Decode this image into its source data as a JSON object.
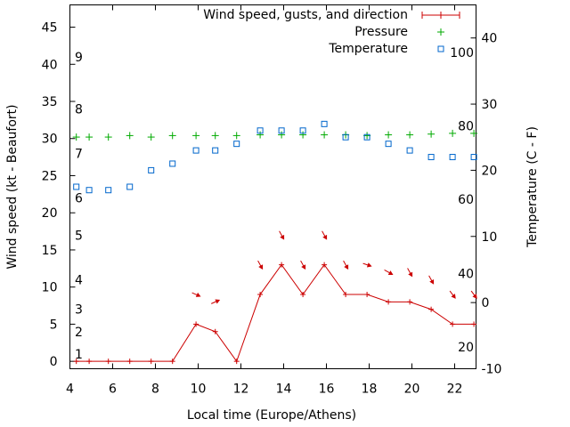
{
  "chart_data": {
    "type": "line",
    "xlabel": "Local time (Europe/Athens)",
    "ylabel_left": "Wind speed (kt - Beaufort)",
    "ylabel_right": "Temperature (C - F)",
    "xlim": [
      4,
      23
    ],
    "ylim_left": [
      -1,
      48
    ],
    "ylim_right": [
      -10,
      45
    ],
    "x_ticks": [
      "4",
      "6",
      "8",
      "10",
      "12",
      "14",
      "16",
      "18",
      "20",
      "22"
    ],
    "y_left_ticks": [
      "0",
      "5",
      "10",
      "15",
      "20",
      "25",
      "30",
      "35",
      "40",
      "45"
    ],
    "y_right_ticks": [
      "-10",
      "0",
      "10",
      "20",
      "30",
      "40"
    ],
    "beaufort_labels": [
      {
        "label": "1",
        "kt": 1
      },
      {
        "label": "2",
        "kt": 4
      },
      {
        "label": "3",
        "kt": 7
      },
      {
        "label": "4",
        "kt": 11
      },
      {
        "label": "5",
        "kt": 17
      },
      {
        "label": "6",
        "kt": 22
      },
      {
        "label": "7",
        "kt": 28
      },
      {
        "label": "8",
        "kt": 34
      },
      {
        "label": "9",
        "kt": 41
      }
    ],
    "fahrenheit_labels": [
      {
        "label": "20",
        "c": -6.7
      },
      {
        "label": "40",
        "c": 4.4
      },
      {
        "label": "60",
        "c": 15.6
      },
      {
        "label": "80",
        "c": 26.7
      },
      {
        "label": "100",
        "c": 37.8
      }
    ],
    "series": [
      {
        "name": "Wind speed, gusts, and direction",
        "color": "#cc0000",
        "x": [
          4.3,
          4.9,
          5.8,
          6.8,
          7.8,
          8.8,
          9.9,
          10.8,
          11.8,
          12.9,
          13.9,
          14.9,
          15.9,
          16.9,
          17.9,
          18.9,
          19.9,
          20.9,
          21.9,
          22.9
        ],
        "values": [
          0,
          0,
          0,
          0,
          0,
          0,
          5,
          4,
          0,
          9,
          13,
          9,
          13,
          9,
          9,
          8,
          8,
          7,
          5,
          5
        ]
      },
      {
        "name": "Pressure",
        "color": "#00aa00",
        "x": [
          4.3,
          4.9,
          5.8,
          6.8,
          7.8,
          8.8,
          9.9,
          10.8,
          11.8,
          12.9,
          13.9,
          14.9,
          15.9,
          16.9,
          17.9,
          18.9,
          19.9,
          20.9,
          21.9,
          22.9
        ],
        "values": [
          30.2,
          30.2,
          30.2,
          30.4,
          30.2,
          30.4,
          30.4,
          30.4,
          30.4,
          30.5,
          30.5,
          30.5,
          30.5,
          30.5,
          30.4,
          30.5,
          30.5,
          30.6,
          30.7,
          30.7
        ]
      },
      {
        "name": "Temperature",
        "color": "#0066cc",
        "x": [
          4.3,
          4.9,
          5.8,
          6.8,
          7.8,
          8.8,
          9.9,
          10.8,
          11.8,
          12.9,
          13.9,
          14.9,
          15.9,
          16.9,
          17.9,
          18.9,
          19.9,
          20.9,
          21.9,
          22.9
        ],
        "values": [
          17.5,
          17,
          17,
          17.5,
          20,
          21,
          23,
          23,
          24,
          26,
          26,
          26,
          27,
          25,
          25,
          24,
          23,
          22,
          22,
          22
        ]
      }
    ],
    "wind_direction_arrows": [
      {
        "x": 9.9,
        "kt": 9,
        "dx": 9,
        "dy": 4
      },
      {
        "x": 10.8,
        "kt": 8,
        "dx": 9,
        "dy": -4
      },
      {
        "x": 12.9,
        "kt": 13,
        "dx": 5,
        "dy": 9
      },
      {
        "x": 13.9,
        "kt": 17,
        "dx": 5,
        "dy": 9
      },
      {
        "x": 14.9,
        "kt": 13,
        "dx": 5,
        "dy": 9
      },
      {
        "x": 15.9,
        "kt": 17,
        "dx": 5,
        "dy": 9
      },
      {
        "x": 16.9,
        "kt": 13,
        "dx": 5,
        "dy": 9
      },
      {
        "x": 17.9,
        "kt": 13,
        "dx": 9,
        "dy": 3
      },
      {
        "x": 18.9,
        "kt": 12,
        "dx": 9,
        "dy": 5
      },
      {
        "x": 19.9,
        "kt": 12,
        "dx": 5,
        "dy": 9
      },
      {
        "x": 20.9,
        "kt": 11,
        "dx": 5,
        "dy": 9
      },
      {
        "x": 21.9,
        "kt": 9,
        "dx": 6,
        "dy": 8
      },
      {
        "x": 22.9,
        "kt": 9,
        "dx": 6,
        "dy": 8
      }
    ],
    "legend_position": "top-right",
    "grid": false
  }
}
